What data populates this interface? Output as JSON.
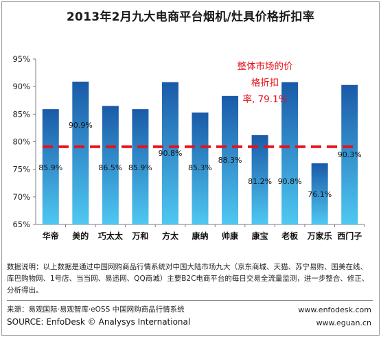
{
  "chart_data": {
    "type": "bar",
    "title": "2013年2月九大电商平台烟机/灶具价格折扣率",
    "categories": [
      "华帝",
      "美的",
      "巧太太",
      "万和",
      "方太",
      "康纳",
      "帅康",
      "康宝",
      "老板",
      "万家乐",
      "西门子"
    ],
    "values": [
      85.9,
      90.9,
      86.5,
      85.9,
      90.8,
      85.3,
      88.3,
      81.2,
      90.8,
      76.1,
      90.3
    ],
    "value_labels": [
      "85.9%",
      "90.9%",
      "86.5%",
      "85.9%",
      "90.8%",
      "85.3%",
      "88.3%",
      "81.2%",
      "90.8%",
      "76.1%",
      "90.3%"
    ],
    "ylim": [
      65,
      95
    ],
    "yticks": [
      "65%",
      "70%",
      "75%",
      "80%",
      "85%",
      "90%",
      "95%"
    ],
    "reference_line": {
      "value": 79.1,
      "label_lines": [
        "整体市场的价",
        "格折扣",
        "率, 79.1%"
      ],
      "color": "#e8101a",
      "style": "dashed"
    },
    "bar_color_top": "#1a5aa8",
    "bar_color_bottom": "#4fc8f2",
    "xlabel": "",
    "ylabel": "",
    "grid": false,
    "legend": "none"
  },
  "footer": {
    "note": "数据说明：以上数据是通过中国网购商品行情系统对中国大陆市场九大（京东商城、天猫、苏宁易购、国美在线、库巴购物网、1号店、当当网、易迅网、QQ商城）主要B2C电商平台的每日交易全流量监测，进一步整合、修正、分析得出。",
    "source_cn": "来源：易观国际·易观智库·eOSS 中国网购商品行情系统",
    "source_en": "SOURCE: EnfoDesk © Analysys International",
    "site_1": "www.enfodesk.com",
    "site_2": "www.eguan.cn"
  }
}
